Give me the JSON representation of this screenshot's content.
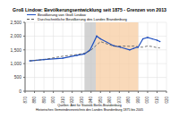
{
  "chart_data": {
    "type": "line",
    "title": "Groß Lindow: Bevölkerungsentwicklung seit 1875 - Grenzen von 2013",
    "x": [
      1875,
      1890,
      1910,
      1925,
      1933,
      1939,
      1946,
      1950,
      1964,
      1971,
      1981,
      1985,
      1989,
      1990,
      1995,
      2000,
      2005,
      2010,
      2013
    ],
    "series": [
      {
        "name": "Bevölkerung von Groß Lindow",
        "color": "#1f4fbf",
        "line_style": "solid",
        "marker": "circle",
        "values": [
          1100,
          1150,
          1200,
          1300,
          1350,
          1500,
          2000,
          1900,
          1650,
          1600,
          1500,
          1550,
          1600,
          1600,
          1900,
          1950,
          1900,
          1850,
          1800
        ]
      },
      {
        "name": "Durchschnittliche Bevölkerung des Landes Brandenburg",
        "color": "#555555",
        "line_style": "dashed",
        "values": [
          1098,
          1150,
          1270,
          1330,
          1380,
          1460,
          1680,
          1800,
          1630,
          1640,
          1630,
          1640,
          1620,
          1600,
          1600,
          1640,
          1620,
          1580,
          1570
        ]
      }
    ],
    "xlim": [
      1870,
      2020
    ],
    "xticks": [
      1870,
      1880,
      1890,
      1900,
      1910,
      1920,
      1930,
      1940,
      1950,
      1960,
      1970,
      1980,
      1990,
      2000,
      2010,
      2020
    ],
    "ylim": [
      0,
      2500
    ],
    "yticks": [
      0,
      500,
      {
        "value": 1000,
        "label": "1,000"
      },
      {
        "value": 1500,
        "label": "1,500"
      },
      {
        "value": 2000,
        "label": "2,000"
      },
      {
        "value": 2500,
        "label": "2,500"
      }
    ],
    "grid": true,
    "shaded_periods": [
      {
        "from": 1933,
        "to": 1945,
        "color": "#c8c8c8"
      },
      {
        "from": 1945,
        "to": 1990,
        "color": "#f8cfa8"
      }
    ],
    "annotations": [
      "Quellen: Amt für Statistik Berlin-Brandenburg",
      "Historisches Gemeindeverzeichnis des Landes Brandenburg 1875 bis 2005"
    ]
  }
}
